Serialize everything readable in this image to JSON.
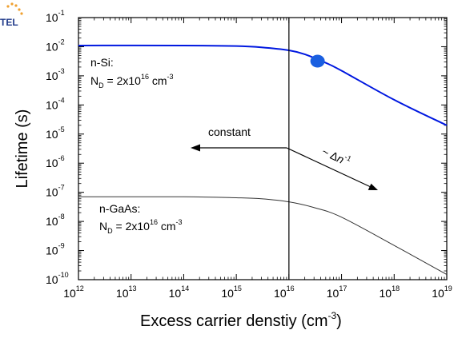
{
  "logo": {
    "text": "TEL",
    "dot_color": "#f0a030",
    "text_color": "#1f3a8a"
  },
  "chart_data": {
    "type": "line",
    "title": "",
    "xlabel": {
      "main": "Excess carrier denstiy (cm",
      "sup": "-3",
      "end": ")"
    },
    "ylabel": "Lifetime (s)",
    "xscale": "log",
    "yscale": "log",
    "xlim": [
      1000000000000.0,
      1e+19
    ],
    "ylim": [
      1e-10,
      0.1
    ],
    "grid": false,
    "x_ticks": [
      {
        "base": "10",
        "exp": "12",
        "value": 1000000000000.0
      },
      {
        "base": "10",
        "exp": "13",
        "value": 10000000000000.0
      },
      {
        "base": "10",
        "exp": "14",
        "value": 100000000000000.0
      },
      {
        "base": "10",
        "exp": "15",
        "value": 1000000000000000.0
      },
      {
        "base": "10",
        "exp": "16",
        "value": 1e+16
      },
      {
        "base": "10",
        "exp": "17",
        "value": 1e+17
      },
      {
        "base": "10",
        "exp": "18",
        "value": 1e+18
      },
      {
        "base": "10",
        "exp": "19",
        "value": 1e+19
      }
    ],
    "y_ticks": [
      {
        "base": "10",
        "exp": "-1",
        "value": 0.1
      },
      {
        "base": "10",
        "exp": "-2",
        "value": 0.01
      },
      {
        "base": "10",
        "exp": "-3",
        "value": 0.001
      },
      {
        "base": "10",
        "exp": "-4",
        "value": 0.0001
      },
      {
        "base": "10",
        "exp": "-5",
        "value": 1e-05
      },
      {
        "base": "10",
        "exp": "-6",
        "value": 1e-06
      },
      {
        "base": "10",
        "exp": "-7",
        "value": 1e-07
      },
      {
        "base": "10",
        "exp": "-8",
        "value": 1e-08
      },
      {
        "base": "10",
        "exp": "-9",
        "value": 1e-09
      },
      {
        "base": "10",
        "exp": "-10",
        "value": 1e-10
      }
    ],
    "series": [
      {
        "color": "#0018e0",
        "points": [
          [
            1000000000000.0,
            0.011
          ],
          [
            100000000000000.0,
            0.011
          ],
          [
            1000000000000000.0,
            0.0105
          ],
          [
            3000000000000000.0,
            0.0095
          ],
          [
            1e+16,
            0.0075
          ],
          [
            2e+16,
            0.0055
          ],
          [
            5e+16,
            0.0028
          ],
          [
            1e+17,
            0.0015
          ],
          [
            1e+18,
            0.00015
          ],
          [
            1e+19,
            2e-05
          ]
        ]
      },
      {
        "color": "#333333",
        "points": [
          [
            1000000000000.0,
            7e-08
          ],
          [
            100000000000000.0,
            7e-08
          ],
          [
            1000000000000000.0,
            6.5e-08
          ],
          [
            3000000000000000.0,
            6e-08
          ],
          [
            1e+16,
            4.7e-08
          ],
          [
            3e+16,
            3e-08
          ],
          [
            1e+17,
            1.4e-08
          ],
          [
            1e+18,
            1.5e-09
          ],
          [
            1e+19,
            1.5e-10
          ]
        ]
      }
    ],
    "marker": {
      "x": 3.5e+16,
      "y": 0.0032,
      "color": "#1a5fe0"
    },
    "vline_x": 1e+16,
    "annotations": {
      "si_label": "n-Si:",
      "si_doping": {
        "prefix": "N",
        "sub": "D",
        "mid": " = 2x10",
        "sup": "16",
        "suffix": " cm",
        "unit_sup": "-3"
      },
      "gaas_label": "n-GaAs:",
      "gaas_doping": {
        "prefix": "N",
        "sub": "D",
        "mid": " = 2x10",
        "sup": "16",
        "suffix": " cm",
        "unit_sup": "-3"
      },
      "constant_label": "constant",
      "slope_label": {
        "prefix": "~ Δ",
        "italic": "n",
        "sup": "-1"
      }
    }
  }
}
